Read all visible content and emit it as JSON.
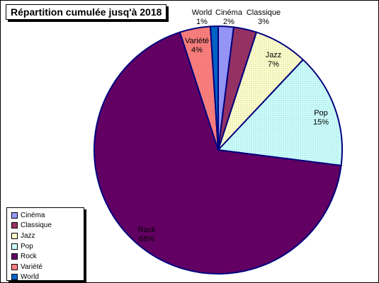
{
  "chart_data": {
    "type": "pie",
    "title": "Répartition cumulée jusq'à 2018",
    "categories": [
      "Cinéma",
      "Classique",
      "Jazz",
      "Pop",
      "Rock",
      "Variété",
      "World"
    ],
    "values": [
      2,
      3,
      7,
      15,
      68,
      4,
      1
    ],
    "value_labels": [
      "2%",
      "3%",
      "7%",
      "15%",
      "68%",
      "4%",
      "1%"
    ],
    "colors": [
      "#9999ff",
      "#993366",
      "#ffffcc",
      "#ccffff",
      "#660066",
      "#ff8080",
      "#0066cc"
    ],
    "legend_position": "bottom-left"
  }
}
